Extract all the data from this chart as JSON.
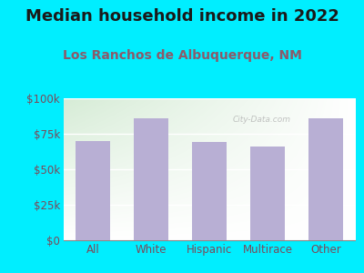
{
  "title": "Median household income in 2022",
  "subtitle": "Los Ranchos de Albuquerque, NM",
  "categories": [
    "All",
    "White",
    "Hispanic",
    "Multirace",
    "Other"
  ],
  "values": [
    70000,
    86000,
    69500,
    66000,
    86000
  ],
  "bar_color": "#b8afd4",
  "background_outer": "#00eeff",
  "background_inner_topleft": "#d6ecd6",
  "background_inner_bottomright": "#ffffff",
  "title_color": "#1a1a1a",
  "subtitle_color": "#8B5A6A",
  "tick_label_color": "#7a4a5a",
  "ylim": [
    0,
    100000
  ],
  "yticks": [
    0,
    25000,
    50000,
    75000,
    100000
  ],
  "ytick_labels": [
    "$0",
    "$25k",
    "$50k",
    "$75k",
    "$100k"
  ],
  "watermark": "City-Data.com",
  "title_fontsize": 13,
  "subtitle_fontsize": 10,
  "tick_fontsize": 8.5
}
